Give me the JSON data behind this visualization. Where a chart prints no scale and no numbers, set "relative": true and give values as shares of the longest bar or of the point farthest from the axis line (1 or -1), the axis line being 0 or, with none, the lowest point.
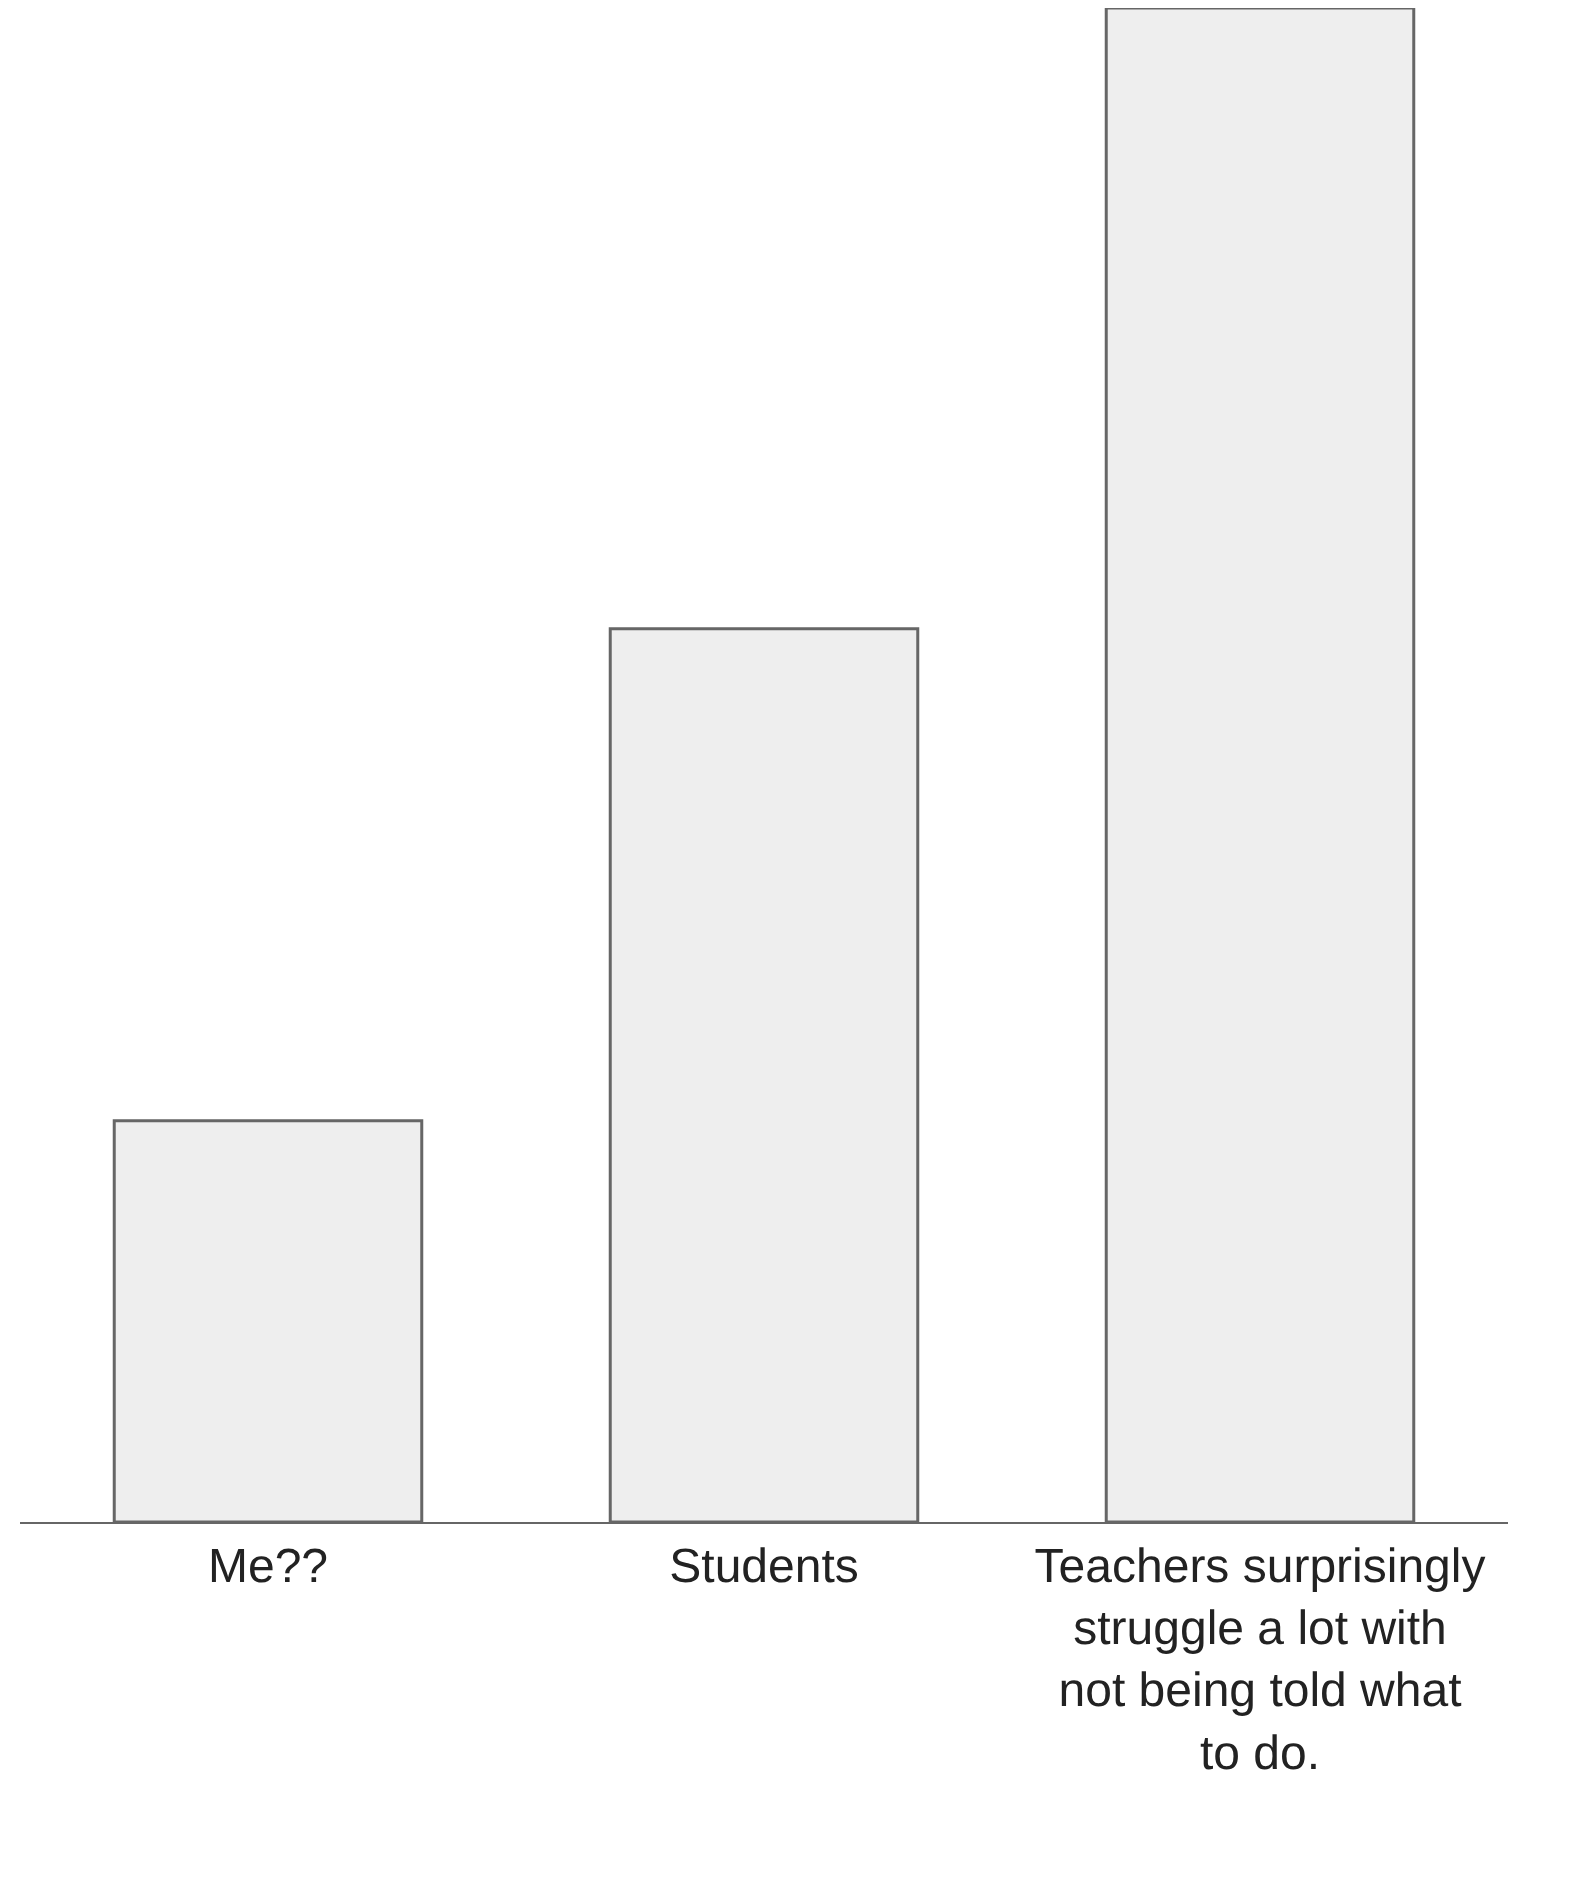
{
  "chart_data": {
    "type": "bar",
    "relative": true,
    "categories": [
      "Me??",
      "Students",
      "Teachers surprisingly struggle a lot with not being told what to do."
    ],
    "values": [
      0.265,
      0.59,
      1
    ],
    "color": "#eeeeee"
  }
}
